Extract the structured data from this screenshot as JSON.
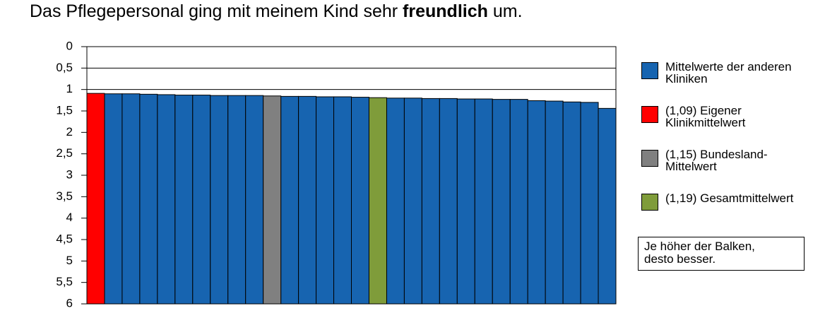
{
  "chart_data": {
    "type": "bar",
    "title_parts": [
      "Das Pflegepersonal ging mit meinem Kind sehr ",
      "freundlich",
      " um."
    ],
    "categories": [
      null,
      null,
      null,
      null,
      null,
      null,
      null,
      null,
      null,
      null,
      null,
      null,
      null,
      null,
      null,
      null,
      null,
      null,
      null,
      null,
      null,
      null,
      null,
      null,
      null,
      null,
      null,
      null,
      null,
      null
    ],
    "series": [
      {
        "name": "Mittelwerte der anderen Kliniken",
        "color": "#1764b0",
        "values": [
          null,
          1.1,
          1.1,
          1.11,
          1.12,
          1.13,
          1.13,
          1.14,
          1.14,
          1.14,
          null,
          1.16,
          1.16,
          1.17,
          1.17,
          1.18,
          null,
          1.2,
          1.2,
          1.21,
          1.21,
          1.22,
          1.22,
          1.23,
          1.23,
          1.26,
          1.27,
          1.29,
          1.3,
          1.44
        ]
      },
      {
        "name": "(1,09) Eigener Klinikmittelwert",
        "color": "#ff0000",
        "values": [
          1.09,
          null,
          null,
          null,
          null,
          null,
          null,
          null,
          null,
          null,
          null,
          null,
          null,
          null,
          null,
          null,
          null,
          null,
          null,
          null,
          null,
          null,
          null,
          null,
          null,
          null,
          null,
          null,
          null,
          null
        ]
      },
      {
        "name": "(1,15) Bundesland-Mittelwert",
        "color": "#808080",
        "values": [
          null,
          null,
          null,
          null,
          null,
          null,
          null,
          null,
          null,
          null,
          1.15,
          null,
          null,
          null,
          null,
          null,
          null,
          null,
          null,
          null,
          null,
          null,
          null,
          null,
          null,
          null,
          null,
          null,
          null,
          null
        ]
      },
      {
        "name": "(1,19) Gesamtmittelwert",
        "color": "#7f9c3a",
        "values": [
          null,
          null,
          null,
          null,
          null,
          null,
          null,
          null,
          null,
          null,
          null,
          null,
          null,
          null,
          null,
          null,
          1.19,
          null,
          null,
          null,
          null,
          null,
          null,
          null,
          null,
          null,
          null,
          null,
          null,
          null
        ]
      }
    ],
    "ylim": [
      0,
      6
    ],
    "y_reversed": true,
    "yticks": [
      0,
      {
        "value": 0.5,
        "label": "0,5"
      },
      1,
      {
        "value": 1.5,
        "label": "1,5"
      },
      2,
      {
        "value": 2.5,
        "label": "2,5"
      },
      3,
      {
        "value": 3.5,
        "label": "3,5"
      },
      4,
      {
        "value": 4.5,
        "label": "4,5"
      },
      5,
      {
        "value": 5.5,
        "label": "5,5"
      },
      6
    ],
    "grid": true,
    "annotation": [
      "Je höher der Balken,",
      "desto besser."
    ]
  }
}
